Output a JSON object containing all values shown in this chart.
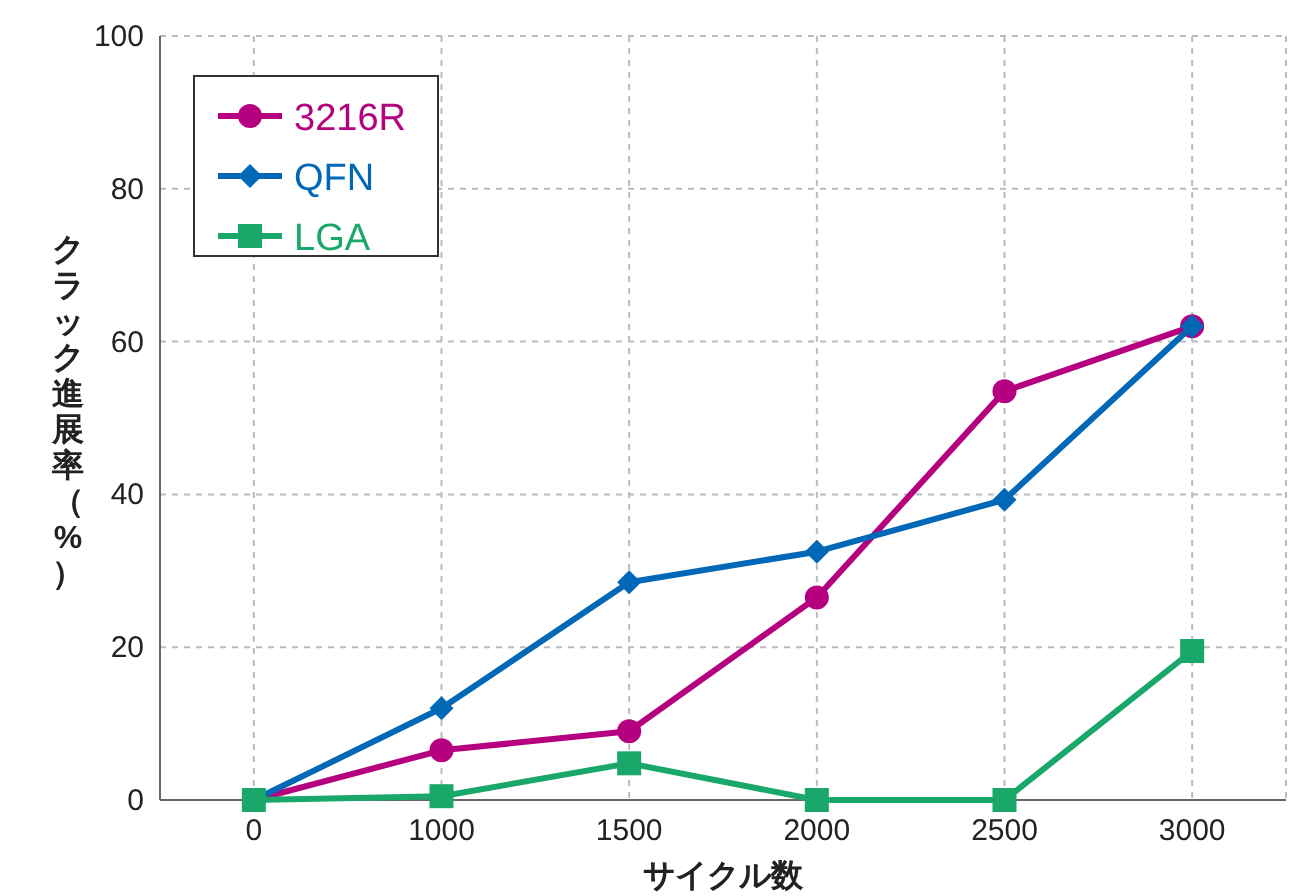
{
  "chart_data": {
    "type": "line",
    "xlabel": "サイクル数",
    "ylabel": "クラック進展率（%）",
    "categories": [
      "0",
      "1000",
      "1500",
      "2000",
      "2500",
      "3000"
    ],
    "series": [
      {
        "name": "3216R",
        "color": "#b5007f",
        "marker": "circle",
        "values": [
          0,
          6.5,
          9,
          26.5,
          53.5,
          62
        ]
      },
      {
        "name": "QFN",
        "color": "#0068b7",
        "marker": "diamond",
        "values": [
          0,
          12,
          28.5,
          32.5,
          39.3,
          62
        ]
      },
      {
        "name": "LGA",
        "color": "#1aa86a",
        "marker": "square",
        "values": [
          0,
          0.5,
          4.8,
          0,
          0,
          19.5
        ]
      }
    ],
    "ylim": [
      0,
      100
    ],
    "yticks": [
      0,
      20,
      40,
      60,
      80,
      100
    ],
    "grid": true,
    "legend": "top left",
    "line_style": "solid"
  }
}
